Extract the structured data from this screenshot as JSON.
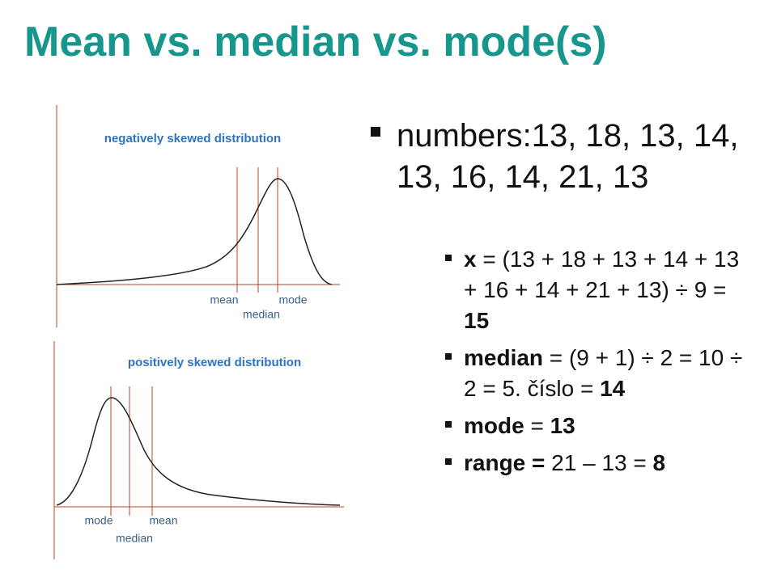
{
  "title": "Mean vs. median vs. mode(s)",
  "figures": [
    {
      "title": "negatively skewed distribution",
      "labels": {
        "mean": "mean",
        "median": "median",
        "mode": "mode"
      }
    },
    {
      "title": "positively skewed distribution",
      "labels": {
        "mode": "mode",
        "median": "median",
        "mean": "mean"
      }
    }
  ],
  "bullet": {
    "text": "numbers:13, 18, 13, 14, 13, 16, 14, 21, 13",
    "sub_bullets": [
      [
        {
          "text": "x",
          "bold": true
        },
        {
          "text": " = (13 + 18 + 13 + 14 + 13 + 16 + 14 + 21 + 13) ÷ 9 = ",
          "bold": false
        },
        {
          "text": "15",
          "bold": true
        }
      ],
      [
        {
          "text": "median",
          "bold": true
        },
        {
          "text": " = (9 + 1) ÷ 2 = 10 ÷ 2 = 5. číslo = ",
          "bold": false
        },
        {
          "text": "14",
          "bold": true
        }
      ],
      [
        {
          "text": "mode",
          "bold": true
        },
        {
          "text": " = ",
          "bold": false
        },
        {
          "text": "13",
          "bold": true
        }
      ],
      [
        {
          "text": "range =",
          "bold": true
        },
        {
          "text": " 21 – 13 = ",
          "bold": false
        },
        {
          "text": "8",
          "bold": true
        }
      ]
    ]
  }
}
